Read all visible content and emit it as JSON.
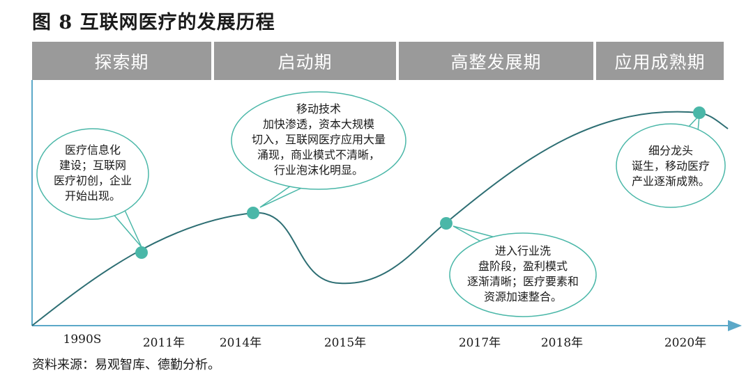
{
  "title": "图 8  互联网医疗的发展历程",
  "phases": [
    "探索期",
    "启动期",
    "高整发展期",
    "应用成熟期"
  ],
  "x_labels": [
    "1990S",
    "2011年",
    "2014年",
    "2015年",
    "2017年",
    "2018年",
    "2020年"
  ],
  "bubbles": [
    {
      "lines": [
        "医疗信息化",
        "建设；互联网",
        "医疗初创，企业",
        "开始出现。"
      ]
    },
    {
      "lines": [
        "移动技术",
        "加快渗透，资本大规模",
        "切入，互联网医疗应用大量",
        "涌现，商业模式不清晰，",
        "行业泡沫化明显。"
      ]
    },
    {
      "lines": [
        "进入行业洗",
        "盘阶段，盈利模式",
        "逐渐清晰；医疗要素和",
        "资源加速整合。"
      ]
    },
    {
      "lines": [
        "细分龙头",
        "诞生，移动医疗",
        "产业逐渐成熟。"
      ]
    }
  ],
  "source": "资料来源：易观智库、德勤分析。",
  "colors": {
    "curve": "#2d6e73",
    "dot": "#4ab7a8",
    "bubble_stroke": "#4ab7a8",
    "phase_bg": "#9a9a9a",
    "axis": "#5ba8c8"
  }
}
